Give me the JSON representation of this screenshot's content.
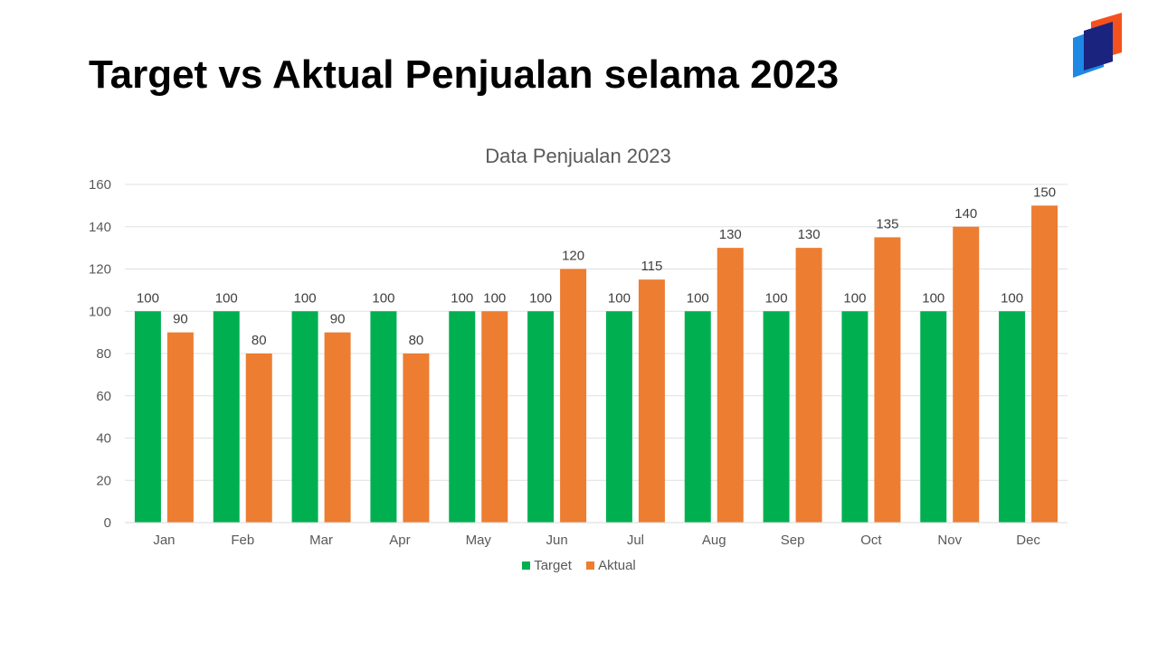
{
  "slide": {
    "title": "Target vs Aktual Penjualan selama 2023"
  },
  "logo": {
    "icon": "stacked-pages-logo",
    "colors": [
      "#1E88E5",
      "#F4511E",
      "#1A237E"
    ]
  },
  "chart_data": {
    "type": "bar",
    "title": "Data Penjualan 2023",
    "xlabel": "",
    "ylabel": "",
    "ylim": [
      0,
      160
    ],
    "yticks": [
      0,
      20,
      40,
      60,
      80,
      100,
      120,
      140,
      160
    ],
    "grid": true,
    "legend_position": "bottom",
    "categories": [
      "Jan",
      "Feb",
      "Mar",
      "Apr",
      "May",
      "Jun",
      "Jul",
      "Aug",
      "Sep",
      "Oct",
      "Nov",
      "Dec"
    ],
    "series": [
      {
        "name": "Target",
        "color": "#00B050",
        "values": [
          100,
          100,
          100,
          100,
          100,
          100,
          100,
          100,
          100,
          100,
          100,
          100
        ]
      },
      {
        "name": "Aktual",
        "color": "#ED7D31",
        "values": [
          90,
          80,
          90,
          80,
          100,
          120,
          115,
          130,
          130,
          135,
          140,
          150
        ]
      }
    ]
  }
}
